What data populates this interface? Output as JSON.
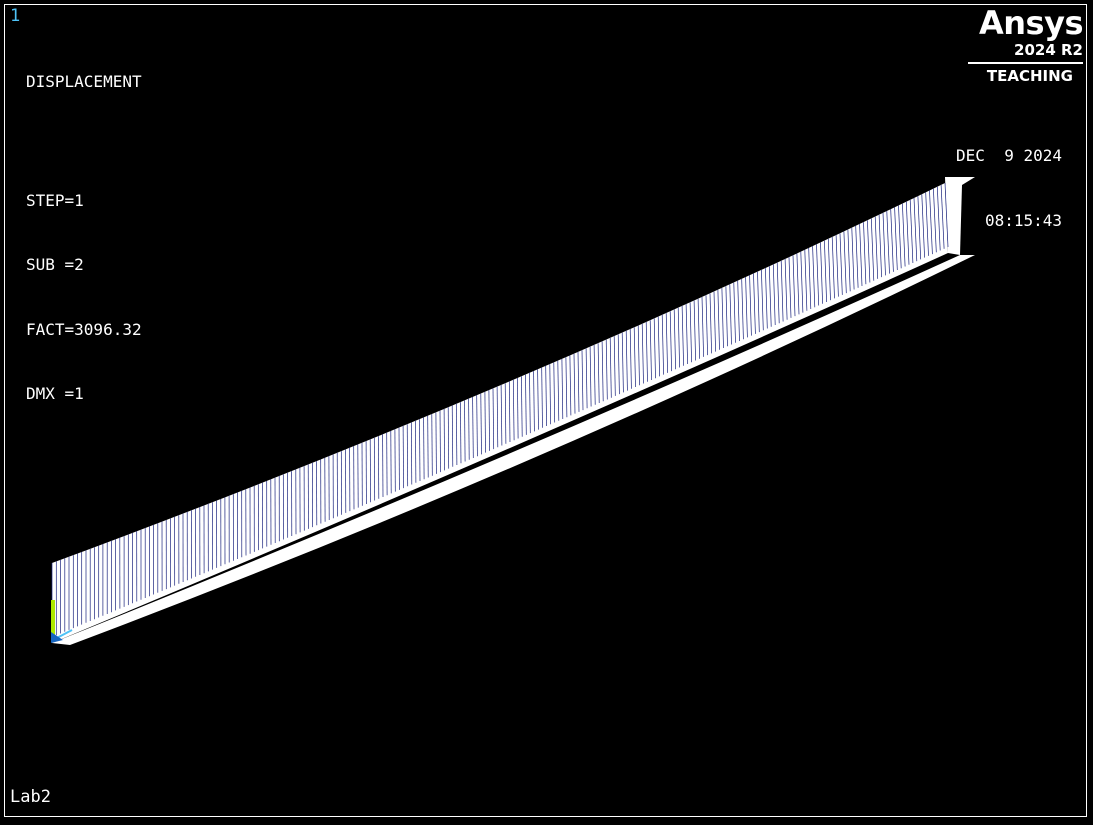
{
  "window": {
    "number": "1"
  },
  "legend": {
    "result_type": "DISPLACEMENT",
    "step": "STEP=1",
    "substep": "SUB =2",
    "factor": "FACT=3096.32",
    "dmx": "DMX =1"
  },
  "logo": {
    "brand": "Ansys",
    "version": "2024 R2",
    "edition": "TEACHING"
  },
  "datetime": {
    "date": "DEC  9 2024",
    "time": "08:15:43"
  },
  "jobname": "Lab2",
  "colors": {
    "background": "#000000",
    "mesh_face": "#ffffff",
    "mesh_lines": "#1a237e",
    "window_number": "#4fc3f7",
    "triad_x": "#4fc3f7",
    "triad_y": "#aeea00",
    "triad_z": "#1565c0"
  }
}
